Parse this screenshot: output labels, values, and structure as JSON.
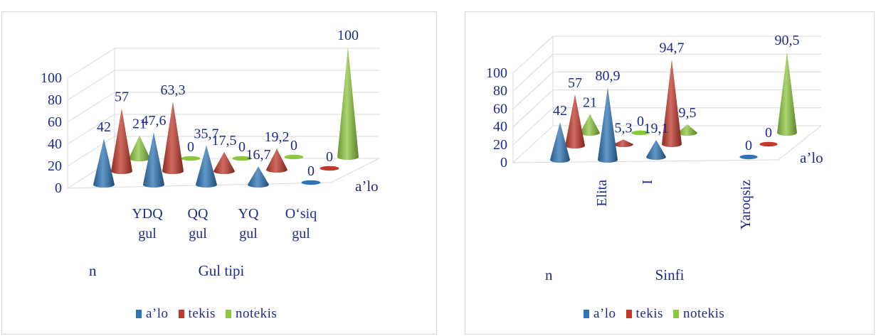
{
  "colors": {
    "text": "#1f2a8c",
    "grid": "#d9d9d9"
  },
  "chart_data": [
    {
      "type": "bar",
      "shape": "cone-3d",
      "title": "",
      "xlabel": "Gul tipi",
      "x_prefix": "n",
      "depth_label": "a’lo",
      "yticks": [
        "0",
        "20",
        "40",
        "60",
        "80",
        "100"
      ],
      "ylim": [
        0,
        100
      ],
      "categories": [
        "",
        "YDQ\ngul",
        "QQ\ngul",
        "YQ\ngul",
        "O‘siq\ngul"
      ],
      "series": [
        {
          "name": "a’lo",
          "color": "#2e75b6",
          "values": [
            42,
            47.6,
            35.7,
            16.7,
            0
          ],
          "labels": [
            "42",
            "47,6",
            "35,7",
            "16,7",
            "0"
          ]
        },
        {
          "name": "tekis",
          "color": "#c0392b",
          "values": [
            57,
            63.3,
            17.5,
            19.2,
            0
          ],
          "labels": [
            "57",
            "63,3",
            "17,5",
            "19,2",
            "0"
          ]
        },
        {
          "name": "notekis",
          "color": "#8dc63f",
          "values": [
            21,
            0,
            0,
            0,
            100
          ],
          "labels": [
            "21",
            "0",
            "0",
            "0",
            "100"
          ]
        }
      ],
      "legend": [
        "a’lo",
        "tekis",
        "notekis"
      ],
      "legend_position": "bottom"
    },
    {
      "type": "bar",
      "shape": "cone-3d",
      "title": "",
      "xlabel": "Sinfi",
      "x_prefix": "n",
      "depth_label": "a’lo",
      "yticks": [
        "0",
        "20",
        "40",
        "60",
        "80",
        "100"
      ],
      "ylim": [
        0,
        100
      ],
      "categories": [
        "",
        "Elita",
        "I",
        "",
        "Yaroqsiz"
      ],
      "series": [
        {
          "name": "a’lo",
          "color": "#2e75b6",
          "values": [
            42,
            80.9,
            19.1,
            null,
            0
          ],
          "labels": [
            "42",
            "80,9",
            "19,1",
            "",
            "0"
          ]
        },
        {
          "name": "tekis",
          "color": "#c0392b",
          "values": [
            57,
            5.3,
            94.7,
            null,
            0
          ],
          "labels": [
            "57",
            "5,3",
            "94,7",
            "",
            "0"
          ]
        },
        {
          "name": "notekis",
          "color": "#8dc63f",
          "values": [
            21,
            0,
            9.5,
            null,
            90.5
          ],
          "labels": [
            "21",
            "0",
            "9,5",
            "",
            "90,5"
          ]
        }
      ],
      "legend": [
        "a’lo",
        "tekis",
        "notekis"
      ],
      "legend_position": "bottom"
    }
  ]
}
